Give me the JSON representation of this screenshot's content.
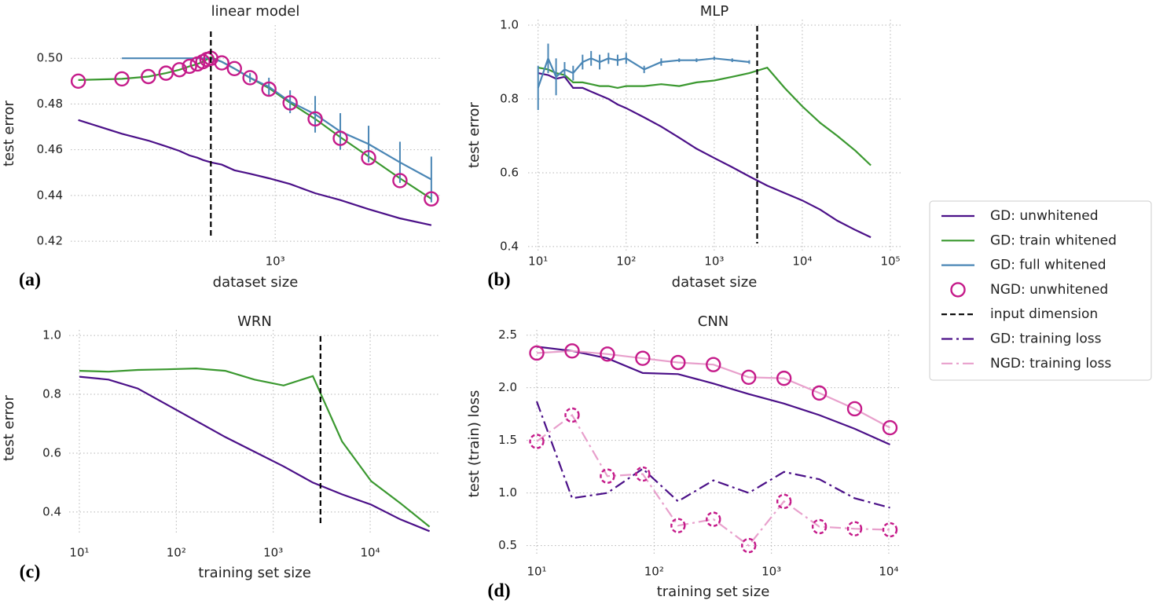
{
  "chart_data": [
    {
      "type": "line",
      "title": "linear model",
      "panel_label": "(a)",
      "x_label": "dataset size",
      "y_label": "test error",
      "xscale": "log",
      "grid": true,
      "xlim": [
        11,
        38000
      ],
      "ylim": [
        0.419,
        0.5145
      ],
      "xticks": [
        {
          "value": 1000,
          "label": "10³"
        }
      ],
      "yticks": [
        0.42,
        0.44,
        0.46,
        0.48,
        {
          "value": 0.5,
          "label": "0.50"
        }
      ],
      "vline": {
        "value": 242,
        "name": "input dimension"
      },
      "x": [
        13,
        34,
        61,
        90,
        121,
        151,
        180,
        203,
        222,
        242,
        308,
        407,
        574,
        871,
        1390,
        2416,
        4207,
        7852,
        15680,
        31340
      ],
      "series": [
        {
          "name": "GD: unwhitened",
          "color": "#4b1088",
          "linestyle": "solid",
          "values": [
            0.473,
            0.467,
            0.464,
            0.4615,
            0.4595,
            0.4575,
            0.4565,
            0.4555,
            0.455,
            0.4545,
            0.4535,
            0.451,
            0.4495,
            0.4475,
            0.445,
            0.441,
            0.438,
            0.434,
            0.43,
            0.427
          ]
        },
        {
          "name": "GD: train whitened",
          "color": "#3a982f",
          "linestyle": "solid",
          "values": [
            0.4905,
            0.491,
            0.492,
            0.4935,
            0.495,
            0.4965,
            0.4975,
            0.4985,
            0.4995,
            0.5005,
            0.4985,
            0.4955,
            0.4915,
            0.487,
            0.4805,
            0.4735,
            0.4655,
            0.457,
            0.4475,
            0.4385
          ]
        },
        {
          "name": "GD: full whitened",
          "color": "#4a86b5",
          "linestyle": "solid",
          "values": [
            null,
            0.5,
            0.5,
            0.5,
            0.5,
            0.5,
            0.5,
            0.5,
            0.5,
            0.5,
            0.4985,
            0.4955,
            0.4915,
            0.4875,
            0.481,
            0.4755,
            0.468,
            0.4625,
            0.4545,
            0.447
          ],
          "errors": [
            null,
            null,
            null,
            null,
            null,
            null,
            null,
            null,
            null,
            null,
            null,
            null,
            0.002,
            0.004,
            0.005,
            0.008,
            0.008,
            0.008,
            0.009,
            0.01
          ]
        },
        {
          "name": "NGD: unwhitened",
          "color": "#c51b8a",
          "line": false,
          "marker": "circle",
          "marker_color": "#c51b8a",
          "values": [
            0.49,
            0.491,
            0.492,
            0.4935,
            0.495,
            0.4965,
            0.4975,
            0.4985,
            0.4995,
            0.5,
            0.498,
            0.4955,
            0.4915,
            0.4865,
            0.4805,
            0.4735,
            0.465,
            0.4565,
            0.4465,
            0.4385
          ]
        }
      ]
    },
    {
      "type": "line",
      "title": "MLP",
      "panel_label": "(b)",
      "x_label": "dataset size",
      "y_label": "test error",
      "xscale": "log",
      "grid": true,
      "xlim": [
        7.7,
        130600
      ],
      "ylim": [
        0.387,
        1.015
      ],
      "xticks": [
        {
          "value": 10,
          "label": "10¹"
        },
        {
          "value": 100,
          "label": "10²"
        },
        {
          "value": 1000,
          "label": "10³"
        },
        {
          "value": 10000,
          "label": "10⁴"
        },
        {
          "value": 100000,
          "label": "10⁵"
        }
      ],
      "yticks": [
        0.4,
        0.6,
        0.8,
        {
          "value": 1,
          "label": "1.0"
        }
      ],
      "vline": {
        "value": 3072,
        "name": "input dimension"
      },
      "x": [
        10,
        13,
        16,
        20,
        25,
        32,
        40,
        50,
        63,
        80,
        100,
        160,
        250,
        400,
        630,
        1000,
        1600,
        2500,
        4000,
        6300,
        10000,
        16000,
        25000,
        40000,
        60000
      ],
      "series": [
        {
          "name": "GD: unwhitened",
          "color": "#4b1088",
          "linestyle": "solid",
          "values": [
            0.87,
            0.865,
            0.855,
            0.86,
            0.83,
            0.83,
            0.82,
            0.81,
            0.8,
            0.785,
            0.775,
            0.75,
            0.725,
            0.695,
            0.665,
            0.64,
            0.615,
            0.59,
            0.565,
            0.545,
            0.525,
            0.5,
            0.47,
            0.445,
            0.425
          ]
        },
        {
          "name": "GD: train whitened",
          "color": "#3a982f",
          "linestyle": "solid",
          "values": [
            0.885,
            0.88,
            0.87,
            0.865,
            0.845,
            0.845,
            0.84,
            0.835,
            0.835,
            0.83,
            0.835,
            0.835,
            0.84,
            0.835,
            0.845,
            0.85,
            0.86,
            0.87,
            0.885,
            0.83,
            0.78,
            0.735,
            0.7,
            0.66,
            0.62
          ]
        },
        {
          "name": "GD: full whitened",
          "color": "#4a86b5",
          "linestyle": "solid",
          "values": [
            0.83,
            0.91,
            0.86,
            0.88,
            0.87,
            0.9,
            0.91,
            0.9,
            0.91,
            0.905,
            0.91,
            0.88,
            0.9,
            0.905,
            0.905,
            0.91,
            0.905,
            0.9,
            null,
            null,
            null,
            null,
            null,
            null,
            null
          ],
          "errors": [
            0.06,
            0.04,
            0.05,
            0.02,
            0.02,
            0.02,
            0.02,
            0.02,
            0.015,
            0.015,
            0.015,
            0.01,
            0.01,
            0.005,
            0.005,
            0.005,
            0.005,
            0.005,
            null,
            null,
            null,
            null,
            null,
            null,
            null
          ]
        }
      ]
    },
    {
      "type": "line",
      "title": "WRN",
      "panel_label": "(c)",
      "x_label": "training set size",
      "y_label": "test error",
      "xscale": "log",
      "grid": true,
      "xlim": [
        7.85,
        52600
      ],
      "ylim": [
        0.325,
        1.019
      ],
      "xticks": [
        {
          "value": 10,
          "label": "10¹"
        },
        {
          "value": 100,
          "label": "10²"
        },
        {
          "value": 1000,
          "label": "10³"
        },
        {
          "value": 10000,
          "label": "10⁴"
        }
      ],
      "yticks": [
        0.4,
        0.6,
        0.8,
        {
          "value": 1,
          "label": "1.0"
        }
      ],
      "vline": {
        "value": 3072,
        "name": "input dimension"
      },
      "x": [
        10,
        20,
        40,
        80,
        160,
        320,
        640,
        1280,
        2560,
        5120,
        10240,
        20480,
        40960
      ],
      "series": [
        {
          "name": "GD: unwhitened",
          "color": "#4b1088",
          "linestyle": "solid",
          "values": [
            0.86,
            0.85,
            0.82,
            0.765,
            0.71,
            0.655,
            0.605,
            0.555,
            0.5,
            0.46,
            0.425,
            0.375,
            0.335
          ]
        },
        {
          "name": "GD: train whitened",
          "color": "#3a982f",
          "linestyle": "solid",
          "values": [
            0.88,
            0.877,
            0.883,
            0.885,
            0.888,
            0.88,
            0.85,
            0.83,
            0.862,
            0.64,
            0.505,
            0.43,
            0.35
          ]
        }
      ]
    },
    {
      "type": "line",
      "title": "CNN",
      "panel_label": "(d)",
      "x_label": "training set size",
      "y_label": "test (train) loss",
      "xscale": "log",
      "grid": true,
      "xlim": [
        8.18,
        12420
      ],
      "ylim": [
        0.4,
        2.55
      ],
      "xticks": [
        {
          "value": 10,
          "label": "10¹"
        },
        {
          "value": 100,
          "label": "10²"
        },
        {
          "value": 1000,
          "label": "10³"
        },
        {
          "value": 10000,
          "label": "10⁴"
        }
      ],
      "yticks": [
        0.5,
        {
          "value": 1,
          "label": "1.0"
        },
        1.5,
        {
          "value": 2,
          "label": "2.0"
        },
        2.5
      ],
      "x": [
        10,
        20,
        40,
        80,
        160,
        320,
        640,
        1280,
        2560,
        5120,
        10240
      ],
      "series": [
        {
          "name": "GD: unwhitened",
          "color": "#4b1088",
          "linestyle": "solid",
          "values": [
            2.39,
            2.35,
            2.28,
            2.14,
            2.13,
            2.04,
            1.94,
            1.85,
            1.74,
            1.61,
            1.46
          ]
        },
        {
          "name": "NGD: unwhitened",
          "color": "#e8a0cc",
          "linestyle": "solid",
          "marker": "circle",
          "marker_color": "#c51b8a",
          "values": [
            2.33,
            2.35,
            2.32,
            2.28,
            2.24,
            2.22,
            2.1,
            2.09,
            1.95,
            1.8,
            1.62
          ]
        },
        {
          "name": "GD: training loss",
          "color": "#4b1088",
          "linestyle": "dash-dot",
          "values": [
            1.87,
            0.95,
            1.0,
            1.23,
            0.92,
            1.12,
            1.0,
            1.2,
            1.13,
            0.95,
            0.86
          ]
        },
        {
          "name": "NGD: training loss",
          "color": "#e8a0cc",
          "linestyle": "dash-dot",
          "marker": "circle",
          "marker_color": "#c51b8a",
          "marker_style": "dashed",
          "values": [
            1.49,
            1.74,
            1.16,
            1.18,
            0.69,
            0.75,
            0.5,
            0.92,
            0.68,
            0.66,
            0.65
          ]
        }
      ]
    }
  ]
}
